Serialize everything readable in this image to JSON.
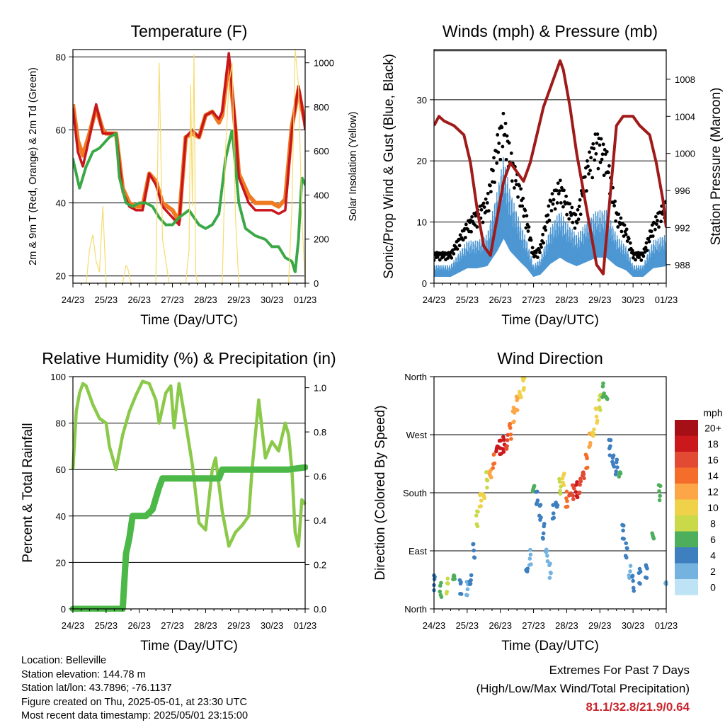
{
  "colors": {
    "temp2m": "#c8161d",
    "temp9m": "#f07a22",
    "dewpoint": "#3aa845",
    "solar": "#f6dc6e",
    "wind": "#4d97d3",
    "gust": "#000000",
    "pressure": "#a01a1a",
    "rh": "#8bc94a",
    "precip": "#4cb848"
  },
  "x_ticks": [
    "24/23",
    "25/23",
    "26/23",
    "27/23",
    "28/23",
    "29/23",
    "30/23",
    "01/23"
  ],
  "chart_data": [
    {
      "id": "temperature",
      "type": "line",
      "title": "Temperature (F)",
      "xlabel": "Time (Day/UTC)",
      "ylabel": "2m & 9m T (Red, Orange) & 2m Td (Green)",
      "ylabel_right": "Solar Insolation (Yellow)",
      "xlim": [
        0,
        7
      ],
      "ylim": [
        18,
        82
      ],
      "ylim_right": [
        0,
        1060
      ],
      "yticks": [
        20,
        40,
        60,
        80
      ],
      "yticks_right": [
        0,
        200,
        400,
        600,
        800,
        1000
      ],
      "grid_y": [
        20,
        40,
        60,
        80
      ],
      "series": [
        {
          "key": "temp9m",
          "axis": "left",
          "x": [
            0,
            0.15,
            0.3,
            0.5,
            0.7,
            0.9,
            1.0,
            1.3,
            1.5,
            1.7,
            1.9,
            2.1,
            2.3,
            2.5,
            2.7,
            3.0,
            3.2,
            3.4,
            3.6,
            3.8,
            4.0,
            4.2,
            4.4,
            4.5,
            4.7,
            4.9,
            5.0,
            5.3,
            5.5,
            5.8,
            6.0,
            6.2,
            6.4,
            6.6,
            6.8,
            6.9,
            7.0
          ],
          "y": [
            67,
            57,
            53,
            59,
            66,
            60,
            59,
            59,
            44,
            40,
            39,
            39,
            48,
            46,
            40,
            38,
            35,
            58,
            59,
            58,
            64,
            65,
            62,
            64,
            79,
            60,
            48,
            42,
            40,
            40,
            40,
            39,
            41,
            61,
            71,
            66,
            62
          ]
        },
        {
          "key": "temp2m",
          "axis": "left",
          "x": [
            0,
            0.15,
            0.3,
            0.5,
            0.7,
            0.9,
            1.0,
            1.3,
            1.5,
            1.7,
            1.9,
            2.1,
            2.3,
            2.5,
            2.7,
            3.0,
            3.2,
            3.4,
            3.6,
            3.8,
            4.0,
            4.2,
            4.4,
            4.5,
            4.7,
            4.9,
            5.0,
            5.3,
            5.5,
            5.8,
            6.0,
            6.2,
            6.4,
            6.6,
            6.8,
            6.9,
            7.0
          ],
          "y": [
            66,
            54,
            50,
            58,
            67,
            59,
            59,
            59,
            43,
            39,
            38,
            38,
            48,
            45,
            39,
            36,
            34,
            58,
            60,
            58,
            64,
            65,
            63,
            65,
            81,
            61,
            47,
            40,
            38,
            38,
            38,
            37,
            38,
            60,
            72,
            67,
            60
          ]
        },
        {
          "key": "dewpoint",
          "axis": "left",
          "x": [
            0,
            0.2,
            0.4,
            0.6,
            0.8,
            1.0,
            1.1,
            1.3,
            1.4,
            1.6,
            1.8,
            2.0,
            2.2,
            2.4,
            2.6,
            2.8,
            3.0,
            3.2,
            3.5,
            3.8,
            4.0,
            4.2,
            4.4,
            4.6,
            4.8,
            5.0,
            5.2,
            5.5,
            5.8,
            6.0,
            6.2,
            6.4,
            6.6,
            6.7,
            6.8,
            6.9,
            7.0
          ],
          "y": [
            52,
            44,
            50,
            54,
            55,
            57,
            58,
            59,
            47,
            40,
            39,
            40,
            40,
            39,
            36,
            34,
            34,
            36,
            38,
            34,
            33,
            34,
            37,
            52,
            60,
            40,
            33,
            31,
            30,
            28,
            28,
            25,
            24,
            21,
            30,
            47,
            45
          ]
        },
        {
          "key": "solar",
          "axis": "right",
          "x": [
            0,
            0.1,
            0.2,
            0.4,
            0.5,
            0.6,
            0.7,
            0.8,
            0.9,
            1.0,
            1.2,
            1.4,
            1.5,
            1.6,
            1.65,
            1.75,
            1.9,
            2.0,
            2.2,
            2.4,
            2.5,
            2.6,
            2.7,
            2.9,
            3.0,
            3.1,
            3.2,
            3.4,
            3.5,
            3.55,
            3.6,
            3.65,
            3.7,
            3.75,
            3.8,
            3.9,
            4.0,
            4.2,
            4.4,
            4.5,
            4.6,
            4.7,
            4.8,
            4.9,
            5.0,
            5.2,
            5.4,
            5.5,
            5.6,
            5.7,
            5.8,
            5.9,
            6.0,
            6.2,
            6.4,
            6.5,
            6.6,
            6.7,
            6.8,
            6.9,
            7.0
          ],
          "y": [
            0,
            0,
            0,
            0,
            150,
            220,
            100,
            50,
            350,
            0,
            0,
            0,
            0,
            80,
            70,
            0,
            0,
            0,
            0,
            0,
            0,
            1000,
            200,
            0,
            0,
            0,
            0,
            0,
            150,
            900,
            350,
            1040,
            50,
            0,
            0,
            0,
            0,
            0,
            0,
            0,
            600,
            900,
            1000,
            300,
            0,
            0,
            0,
            0,
            0,
            0,
            0,
            0,
            0,
            0,
            0,
            0,
            350,
            1060,
            900,
            300,
            0
          ]
        }
      ]
    },
    {
      "id": "winds",
      "type": "scatter",
      "title": "Winds (mph) & Pressure (mb)",
      "xlabel": "Time (Day/UTC)",
      "ylabel": "Sonic/Prop Wind & Gust (Blue, Black)",
      "ylabel_right": "Station Pressure (Maroon)",
      "xlim": [
        0,
        7
      ],
      "ylim": [
        0,
        38.2
      ],
      "ylim_right": [
        986.0,
        1011.2
      ],
      "yticks": [
        0,
        10,
        20,
        30
      ],
      "yticks_right": [
        988,
        992,
        996,
        1000,
        1004,
        1008
      ],
      "grid_y": [
        10,
        20,
        30,
        38
      ],
      "series": [
        {
          "key": "wind",
          "axis": "left",
          "x": [
            0,
            0.5,
            1.0,
            1.3,
            1.6,
            1.9,
            2.1,
            2.3,
            2.6,
            2.8,
            3.0,
            3.2,
            3.5,
            3.8,
            4.0,
            4.3,
            4.6,
            4.9,
            5.2,
            5.5,
            5.8,
            6.0,
            6.3,
            6.6,
            7.0
          ],
          "y": [
            3,
            3,
            7,
            7,
            8,
            15,
            21,
            15,
            10,
            7,
            3,
            4,
            9,
            12,
            10,
            8,
            10,
            12,
            12,
            8,
            6,
            3,
            3,
            7,
            8
          ]
        },
        {
          "key": "gust",
          "axis": "left",
          "x": [
            0,
            0.5,
            1.0,
            1.3,
            1.6,
            1.9,
            2.1,
            2.3,
            2.6,
            2.8,
            3.0,
            3.2,
            3.5,
            3.8,
            4.0,
            4.3,
            4.6,
            4.9,
            5.2,
            5.5,
            5.8,
            6.0,
            6.3,
            6.6,
            7.0
          ],
          "y": [
            5,
            5,
            10,
            12,
            14,
            24,
            28,
            22,
            16,
            11,
            5,
            6,
            14,
            17,
            14,
            11,
            20,
            25,
            22,
            12,
            9,
            5,
            5,
            10,
            14
          ]
        },
        {
          "key": "pressure",
          "axis": "right",
          "x": [
            0,
            0.15,
            0.3,
            0.6,
            0.9,
            1.1,
            1.3,
            1.5,
            1.7,
            1.9,
            2.1,
            2.3,
            2.5,
            2.7,
            2.9,
            3.1,
            3.3,
            3.5,
            3.7,
            3.8,
            3.9,
            4.1,
            4.3,
            4.5,
            4.7,
            4.9,
            5.1,
            5.3,
            5.5,
            5.7,
            6.0,
            6.2,
            6.5,
            6.7,
            6.9,
            7.0
          ],
          "y": [
            1003,
            1004,
            1003.5,
            1003,
            1002,
            999,
            994,
            990,
            989,
            993,
            997,
            999,
            998,
            997,
            999,
            1002,
            1005,
            1007,
            1009,
            1010,
            1009,
            1005,
            1000,
            996,
            992,
            988,
            987,
            995,
            1003,
            1004,
            1004,
            1003,
            1002,
            999,
            995,
            992
          ]
        }
      ]
    },
    {
      "id": "humidity",
      "type": "line",
      "title": "Relative Humidity (%) & Precipitation (in)",
      "xlabel": "Time (Day/UTC)",
      "ylabel": "Percent & Total Rainfall",
      "xlim": [
        0,
        7
      ],
      "ylim": [
        0,
        100
      ],
      "ylim_right": [
        0,
        1.05
      ],
      "yticks": [
        0,
        20,
        40,
        60,
        80,
        100
      ],
      "yticks_right": [
        0.0,
        0.2,
        0.4,
        0.6,
        0.8,
        1.0
      ],
      "grid_y": [
        20,
        40,
        60,
        80
      ],
      "series": [
        {
          "key": "rh",
          "axis": "left",
          "x": [
            0,
            0.1,
            0.2,
            0.3,
            0.4,
            0.6,
            0.8,
            1.0,
            1.1,
            1.3,
            1.5,
            1.7,
            1.9,
            2.1,
            2.3,
            2.5,
            2.6,
            2.8,
            2.95,
            3.05,
            3.2,
            3.4,
            3.6,
            3.8,
            4.0,
            4.2,
            4.3,
            4.5,
            4.7,
            4.9,
            5.1,
            5.3,
            5.4,
            5.6,
            5.8,
            6.0,
            6.2,
            6.4,
            6.5,
            6.6,
            6.7,
            6.8,
            6.9,
            7.0
          ],
          "y": [
            60,
            85,
            93,
            97,
            96,
            88,
            82,
            80,
            70,
            60,
            75,
            85,
            92,
            98,
            97,
            90,
            80,
            93,
            96,
            78,
            97,
            80,
            62,
            37,
            34,
            60,
            65,
            42,
            27,
            33,
            36,
            40,
            60,
            90,
            65,
            72,
            68,
            80,
            75,
            60,
            33,
            27,
            47,
            45
          ]
        },
        {
          "key": "precip",
          "axis": "right",
          "x": [
            0,
            0.5,
            1.0,
            1.1,
            1.3,
            1.5,
            1.6,
            1.7,
            1.8,
            2.0,
            2.2,
            2.4,
            2.5,
            2.6,
            2.7,
            3.0,
            3.5,
            4.0,
            4.4,
            4.5,
            5.0,
            5.5,
            6.0,
            6.5,
            7.0
          ],
          "y": [
            0,
            0,
            0,
            0,
            0,
            0,
            0.25,
            0.32,
            0.42,
            0.42,
            0.42,
            0.45,
            0.5,
            0.55,
            0.59,
            0.59,
            0.59,
            0.59,
            0.59,
            0.63,
            0.63,
            0.63,
            0.63,
            0.63,
            0.64
          ]
        }
      ]
    },
    {
      "id": "direction",
      "type": "scatter",
      "title": "Wind Direction",
      "xlabel": "Time (Day/UTC)",
      "ylabel": "Direction (Colored By Speed)",
      "xlim": [
        0,
        7
      ],
      "ylim": [
        0,
        360
      ],
      "yticks": [
        "North",
        "East",
        "South",
        "West",
        "North"
      ],
      "ytick_values": [
        0,
        90,
        180,
        270,
        360
      ],
      "grid_y": [
        90,
        180,
        270
      ],
      "series": [
        {
          "name": "direction",
          "x": [
            0,
            0.2,
            0.4,
            0.6,
            0.8,
            1.0,
            1.1,
            1.2,
            1.3,
            1.4,
            1.5,
            1.6,
            1.7,
            1.8,
            1.9,
            2.0,
            2.1,
            2.2,
            2.3,
            2.4,
            2.5,
            2.6,
            2.7,
            2.8,
            2.9,
            3.0,
            3.1,
            3.2,
            3.3,
            3.4,
            3.5,
            3.6,
            3.7,
            3.8,
            3.9,
            4.0,
            4.1,
            4.2,
            4.3,
            4.4,
            4.5,
            4.6,
            4.7,
            4.8,
            4.9,
            5.0,
            5.1,
            5.2,
            5.3,
            5.4,
            5.5,
            5.6,
            5.7,
            5.8,
            5.9,
            6.0,
            6.2,
            6.4,
            6.6,
            6.8,
            7.0
          ],
          "y": [
            40,
            30,
            35,
            40,
            35,
            30,
            50,
            90,
            140,
            170,
            180,
            200,
            210,
            230,
            240,
            250,
            255,
            260,
            275,
            300,
            320,
            340,
            350,
            60,
            80,
            180,
            170,
            150,
            120,
            80,
            60,
            150,
            170,
            190,
            200,
            170,
            175,
            180,
            185,
            190,
            200,
            230,
            260,
            280,
            300,
            320,
            340,
            330,
            250,
            230,
            220,
            200,
            120,
            90,
            60,
            40,
            50,
            60,
            120,
            180,
            40
          ],
          "speed": [
            4,
            5,
            7,
            6,
            4,
            2,
            3,
            4,
            8,
            10,
            9,
            8,
            12,
            14,
            17,
            18,
            17,
            16,
            14,
            12,
            11,
            10,
            9,
            3,
            2,
            5,
            4,
            3,
            3,
            2,
            2,
            3,
            4,
            8,
            10,
            14,
            15,
            16,
            17,
            16,
            15,
            13,
            12,
            10,
            9,
            8,
            6,
            6,
            4,
            3,
            4,
            5,
            4,
            3,
            2,
            3,
            3,
            4,
            5,
            6,
            2
          ]
        }
      ],
      "legend_title": "mph",
      "legend_labels": [
        "20+",
        "18",
        "16",
        "14",
        "12",
        "10",
        "8",
        "6",
        "4",
        "2",
        "0"
      ],
      "legend_colors": [
        "#a50f15",
        "#cb181d",
        "#e34a33",
        "#f46d2a",
        "#fca647",
        "#f0d24a",
        "#c9d94a",
        "#4daf5b",
        "#3d7fbf",
        "#74b3e0",
        "#bde3f5"
      ]
    }
  ],
  "info": {
    "location": "Location: Belleville",
    "elevation": "Station elevation: 144.78 m",
    "latlon": "Station lat/lon: 43.7896; -76.1137",
    "created": "Figure created on Thu, 2025-05-01, at 23:30 UTC",
    "recent": "Most recent data timestamp: 2025/05/01 23:15:00"
  },
  "extremes": {
    "title": "Extremes For Past 7 Days",
    "subtitle": "(High/Low/Max Wind/Total Precipitation)",
    "values": "81.1/32.8/21.9/0.64"
  }
}
